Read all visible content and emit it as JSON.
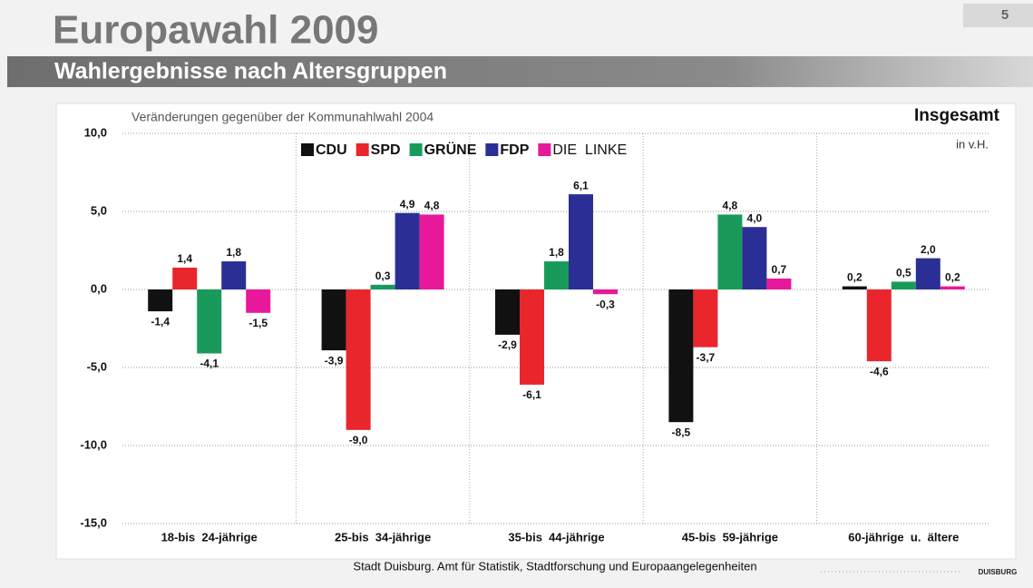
{
  "header": {
    "title": "Europawahl 2009",
    "page": "5",
    "subtitle": "Wahlergebnisse nach Altersgruppen"
  },
  "chart_data": {
    "type": "bar",
    "title": "Insgesamt",
    "subtitle": "Veränderungen gegenüber der Kommunahlwahl 2004",
    "unit_label": "in v.H.",
    "categories": [
      "18-bis  24-jährige",
      "25-bis  34-jährige",
      "35-bis  44-jährige",
      "45-bis  59-jährige",
      "60-jährige  u.  ältere"
    ],
    "series": [
      {
        "name": "CDU",
        "color": "#111111",
        "values": [
          -1.4,
          -3.9,
          -2.9,
          -8.5,
          0.2
        ],
        "value_labels": [
          "-1,4",
          "-3,9",
          "-2,9",
          "-8,5",
          "0,2"
        ]
      },
      {
        "name": "SPD",
        "color": "#e8262b",
        "values": [
          1.4,
          -9.0,
          -6.1,
          -3.7,
          -4.6
        ],
        "value_labels": [
          "1,4",
          "-9,0",
          "-6,1",
          "-3,7",
          "-4,6"
        ]
      },
      {
        "name": "GRÜNE",
        "color": "#1a9a5a",
        "values": [
          -4.1,
          0.3,
          1.8,
          4.8,
          0.5
        ],
        "value_labels": [
          "-4,1",
          "0,3",
          "1,8",
          "4,8",
          "0,5"
        ]
      },
      {
        "name": "FDP",
        "color": "#2b2f95",
        "values": [
          1.8,
          4.9,
          6.1,
          4.0,
          2.0
        ],
        "value_labels": [
          "1,8",
          "4,9",
          "6,1",
          "4,0",
          "2,0"
        ]
      },
      {
        "name": "DIE  LINKE",
        "color": "#e8189a",
        "values": [
          -1.5,
          4.8,
          -0.3,
          0.7,
          0.2
        ],
        "value_labels": [
          "-1,5",
          "4,8",
          "-0,3",
          "0,7",
          "0,2"
        ]
      }
    ],
    "ylim": [
      -15,
      10
    ],
    "yticks": [
      {
        "value": -15,
        "label": "-15,0"
      },
      {
        "value": -10,
        "label": "-10,0"
      },
      {
        "value": -5,
        "label": "-5,0"
      },
      {
        "value": 0,
        "label": "0,0"
      },
      {
        "value": 5,
        "label": "5,0"
      },
      {
        "value": 10,
        "label": "10,0"
      }
    ],
    "grid": true,
    "source": "Stadt Duisburg. Amt für Statistik, Stadtforschung und Europaangelegenheiten"
  },
  "footer": {
    "logo": "DUISBURG"
  }
}
